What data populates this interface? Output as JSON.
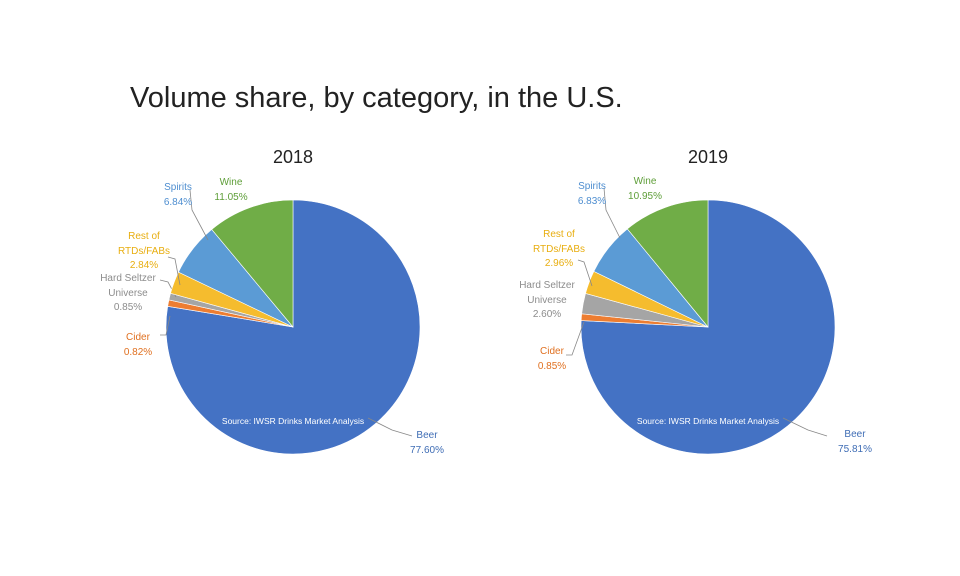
{
  "title": "Volume share, by category, in the U.S.",
  "chart_data": [
    {
      "type": "pie",
      "title": "2018",
      "source": "Source: IWSR Drinks Market Analysis",
      "slices": [
        {
          "name": "Beer",
          "label_lines": [
            "Beer"
          ],
          "value": 77.6,
          "value_label": "77.60%",
          "color": "#4472C4"
        },
        {
          "name": "Cider",
          "label_lines": [
            "Cider"
          ],
          "value": 0.82,
          "value_label": "0.82%",
          "color": "#ED7D31"
        },
        {
          "name": "Hard Seltzer Universe",
          "label_lines": [
            "Hard Seltzer",
            "Universe"
          ],
          "value": 0.85,
          "value_label": "0.85%",
          "color": "#A5A5A5"
        },
        {
          "name": "Rest of RTDs/FABs",
          "label_lines": [
            "Rest of",
            "RTDs/FABs"
          ],
          "value": 2.84,
          "value_label": "2.84%",
          "color": "#F5BC2E"
        },
        {
          "name": "Spirits",
          "label_lines": [
            "Spirits"
          ],
          "value": 6.84,
          "value_label": "6.84%",
          "color": "#5B9BD5"
        },
        {
          "name": "Wine",
          "label_lines": [
            "Wine"
          ],
          "value": 11.05,
          "value_label": "11.05%",
          "color": "#70AD47"
        }
      ]
    },
    {
      "type": "pie",
      "title": "2019",
      "source": "Source: IWSR Drinks Market Analysis",
      "slices": [
        {
          "name": "Beer",
          "label_lines": [
            "Beer"
          ],
          "value": 75.81,
          "value_label": "75.81%",
          "color": "#4472C4"
        },
        {
          "name": "Cider",
          "label_lines": [
            "Cider"
          ],
          "value": 0.85,
          "value_label": "0.85%",
          "color": "#ED7D31"
        },
        {
          "name": "Hard Seltzer Universe",
          "label_lines": [
            "Hard Seltzer",
            "Universe"
          ],
          "value": 2.6,
          "value_label": "2.60%",
          "color": "#A5A5A5"
        },
        {
          "name": "Rest of RTDs/FABs",
          "label_lines": [
            "Rest of",
            "RTDs/FABs"
          ],
          "value": 2.96,
          "value_label": "2.96%",
          "color": "#F5BC2E"
        },
        {
          "name": "Spirits",
          "label_lines": [
            "Spirits"
          ],
          "value": 6.83,
          "value_label": "6.83%",
          "color": "#5B9BD5"
        },
        {
          "name": "Wine",
          "label_lines": [
            "Wine"
          ],
          "value": 10.95,
          "value_label": "10.95%",
          "color": "#70AD47"
        }
      ]
    }
  ]
}
